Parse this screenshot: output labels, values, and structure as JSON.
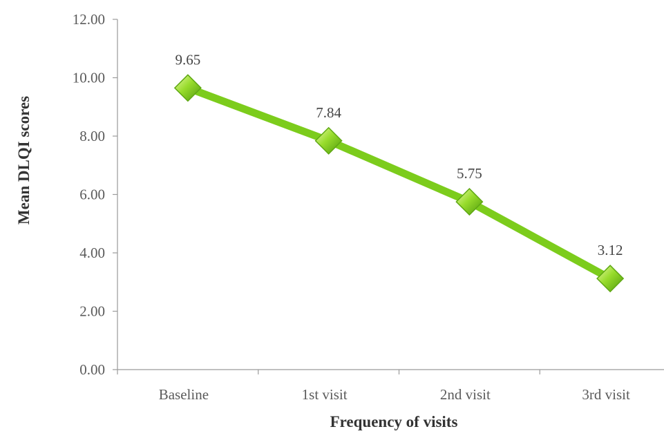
{
  "chart_data": {
    "type": "line",
    "categories": [
      "Baseline",
      "1st  visit",
      "2nd  visit",
      "3rd  visit"
    ],
    "series": [
      {
        "values": [
          9.65,
          7.84,
          5.75,
          3.12
        ],
        "color": "#7ccc1c",
        "marker": "diamond"
      }
    ],
    "data_labels": [
      "9.65",
      "7.84",
      "5.75",
      "3.12"
    ],
    "y_tick_labels": [
      "0.00",
      "2.00",
      "4.00",
      "6.00",
      "8.00",
      "10.00",
      "12.00"
    ],
    "ylim": [
      0,
      12
    ],
    "xlabel": "Frequency of visits",
    "ylabel": "Mean  DLQI scores",
    "grid": false,
    "legend": "none"
  }
}
